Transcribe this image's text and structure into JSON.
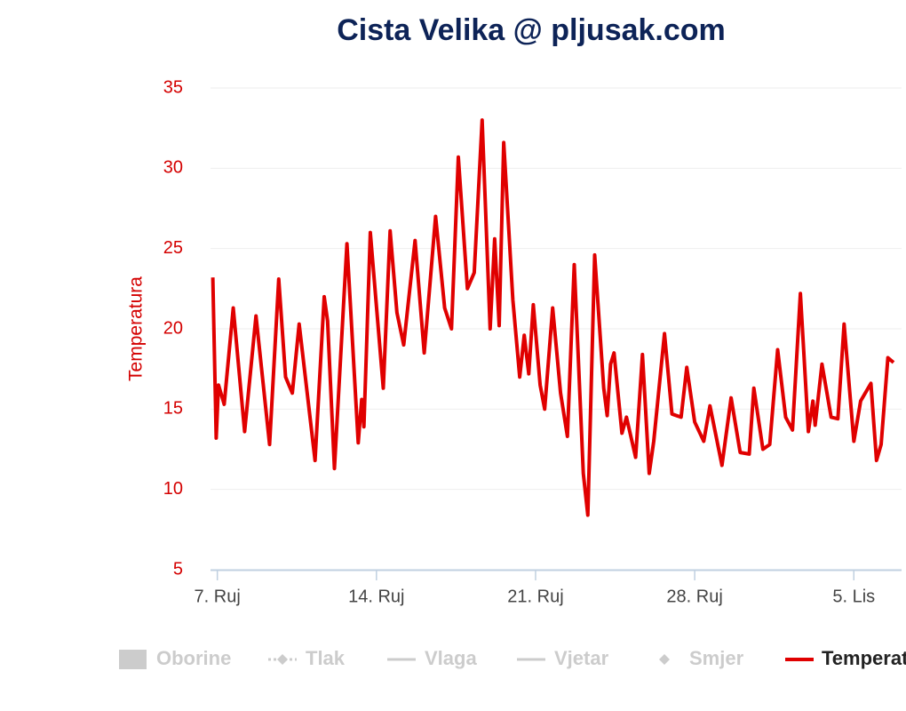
{
  "chart_data": {
    "type": "line",
    "title": "Cista Velika @ pljusak.com",
    "y_axis_label": "Temperatura",
    "xlim": [
      6.7,
      37.1
    ],
    "ylim": [
      5,
      35
    ],
    "yticks": [
      5,
      10,
      15,
      20,
      25,
      30,
      35
    ],
    "xticks": [
      {
        "value": 7,
        "label": "7. Ruj"
      },
      {
        "value": 14,
        "label": "14. Ruj"
      },
      {
        "value": 21,
        "label": "21. Ruj"
      },
      {
        "value": 28,
        "label": "28. Ruj"
      },
      {
        "value": 35,
        "label": "5. Lis"
      }
    ],
    "grid": true,
    "legend_items": [
      {
        "name": "Oborine",
        "symbol": "rect"
      },
      {
        "name": "Tlak",
        "symbol": "line-diamond"
      },
      {
        "name": "Vlaga",
        "symbol": "line"
      },
      {
        "name": "Vjetar",
        "symbol": "line"
      },
      {
        "name": "Smjer",
        "symbol": "diamond"
      }
    ],
    "x": [
      6.8,
      6.95,
      7.05,
      7.3,
      7.7,
      8.2,
      8.7,
      9.3,
      9.7,
      10.0,
      10.3,
      10.6,
      11.3,
      11.7,
      11.85,
      12.15,
      12.7,
      13.2,
      13.35,
      13.45,
      13.73,
      14.3,
      14.6,
      14.9,
      15.2,
      15.7,
      16.1,
      16.6,
      17.0,
      17.3,
      17.6,
      18.0,
      18.3,
      18.65,
      19.0,
      19.2,
      19.4,
      19.6,
      20.0,
      20.3,
      20.5,
      20.7,
      20.9,
      21.2,
      21.4,
      21.75,
      22.1,
      22.4,
      22.7,
      23.1,
      23.3,
      23.6,
      24.0,
      24.15,
      24.3,
      24.45,
      24.8,
      25.0,
      25.4,
      25.7,
      26.0,
      26.2,
      26.67,
      27.0,
      27.4,
      27.65,
      28.0,
      28.4,
      28.67,
      29.2,
      29.6,
      30.0,
      30.4,
      30.6,
      31.0,
      31.3,
      31.65,
      32.0,
      32.3,
      32.65,
      33.0,
      33.2,
      33.3,
      33.6,
      34.0,
      34.3,
      34.57,
      35.0,
      35.3,
      35.75,
      36.0,
      36.2,
      36.5,
      36.75
    ],
    "series": [
      {
        "name": "Temperatura",
        "color": "#e00000",
        "values": [
          23.2,
          13.2,
          16.5,
          15.3,
          21.3,
          13.6,
          20.8,
          12.8,
          23.1,
          17.0,
          16.0,
          20.3,
          11.8,
          22.0,
          20.5,
          11.3,
          25.3,
          12.9,
          15.6,
          13.9,
          26.0,
          16.3,
          26.1,
          21.0,
          19.0,
          25.5,
          18.5,
          27.0,
          21.3,
          20.0,
          30.7,
          22.5,
          23.5,
          33.0,
          20.0,
          25.6,
          20.2,
          31.6,
          21.8,
          17.0,
          19.6,
          17.2,
          21.5,
          16.5,
          15.0,
          21.3,
          16.0,
          13.3,
          24.0,
          11.0,
          8.4,
          24.6,
          16.3,
          14.6,
          17.8,
          18.5,
          13.5,
          14.5,
          12.0,
          18.4,
          11.0,
          13.0,
          19.7,
          14.7,
          14.5,
          17.6,
          14.2,
          13.0,
          15.2,
          11.5,
          15.7,
          12.3,
          12.2,
          16.3,
          12.5,
          12.8,
          18.7,
          14.5,
          13.7,
          22.2,
          13.6,
          15.5,
          14.0,
          17.8,
          14.5,
          14.4,
          20.3,
          13.0,
          15.5,
          16.6,
          11.8,
          12.8,
          18.2,
          17.9
        ]
      }
    ]
  }
}
